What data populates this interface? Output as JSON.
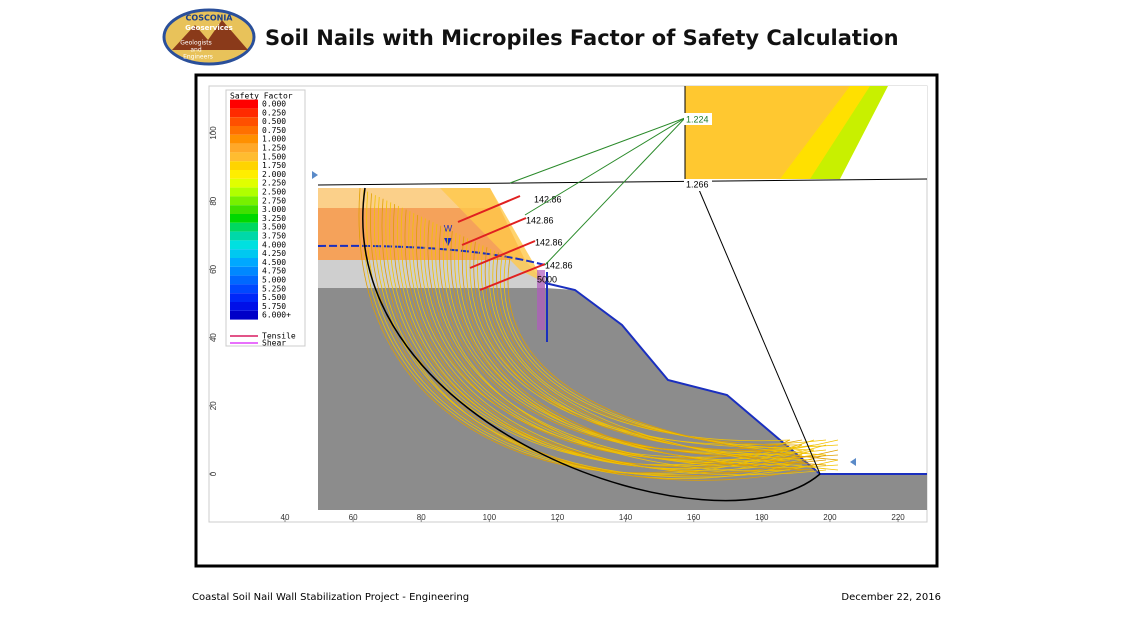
{
  "header": {
    "title": "Soil Nails with Micropiles Factor of Safety Calculation",
    "logo": [
      "COSCONIA",
      "Geoservices",
      "Geologists",
      "and",
      "Engineers"
    ]
  },
  "figure": {
    "legend": {
      "title": "Safety Factor",
      "levels": [
        {
          "label": "0.000",
          "color": "#ff0000"
        },
        {
          "label": "0.250",
          "color": "#ff2a00"
        },
        {
          "label": "0.500",
          "color": "#ff5000"
        },
        {
          "label": "0.750",
          "color": "#ff7000"
        },
        {
          "label": "1.000",
          "color": "#ff9000"
        },
        {
          "label": "1.250",
          "color": "#ffa828"
        },
        {
          "label": "1.500",
          "color": "#ffbc30"
        },
        {
          "label": "1.750",
          "color": "#ffd400"
        },
        {
          "label": "2.000",
          "color": "#ffee00"
        },
        {
          "label": "2.250",
          "color": "#e0ff00"
        },
        {
          "label": "2.500",
          "color": "#b0ff00"
        },
        {
          "label": "2.750",
          "color": "#78f000"
        },
        {
          "label": "3.000",
          "color": "#40e000"
        },
        {
          "label": "3.250",
          "color": "#00d800"
        },
        {
          "label": "3.500",
          "color": "#00d860"
        },
        {
          "label": "3.750",
          "color": "#00d8a8"
        },
        {
          "label": "4.000",
          "color": "#00e0e0"
        },
        {
          "label": "4.250",
          "color": "#00c8f0"
        },
        {
          "label": "4.500",
          "color": "#00a8ff"
        },
        {
          "label": "4.750",
          "color": "#0088ff"
        },
        {
          "label": "5.000",
          "color": "#0068ff"
        },
        {
          "label": "5.250",
          "color": "#0048ff"
        },
        {
          "label": "5.500",
          "color": "#0028f8"
        },
        {
          "label": "5.750",
          "color": "#0010e8"
        },
        {
          "label": "6.000+",
          "color": "#0000c8"
        }
      ],
      "lines": [
        {
          "label": "Tensile",
          "color": "#d81b60"
        },
        {
          "label": "Shear",
          "color": "#e040fb"
        }
      ]
    },
    "xticks": [
      40,
      60,
      80,
      100,
      120,
      140,
      160,
      180,
      200,
      220
    ],
    "yticks": [
      0,
      20,
      40,
      60,
      80,
      100
    ],
    "nail_loads": [
      "142.86",
      "142.86",
      "142.86",
      "142.86"
    ],
    "pile_load": "5000",
    "water_label": "W",
    "fos_labels": [
      "1.224",
      "1.266"
    ]
  },
  "footer": {
    "project": "Coastal Soil Nail Wall Stabilization Project - Engineering",
    "date": "December 22, 2016"
  }
}
